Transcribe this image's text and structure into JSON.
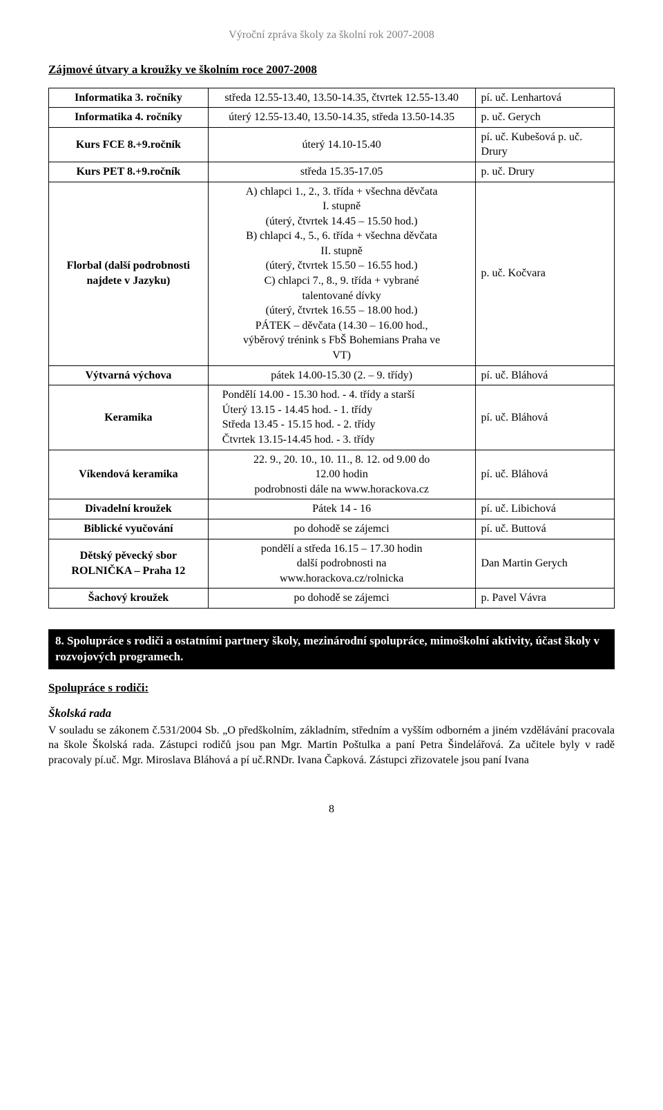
{
  "header": "Výroční zpráva školy za školní rok 2007-2008",
  "sectionTitle": "Zájmové útvary a kroužky ve školním roce 2007-2008",
  "rows": [
    {
      "name": "Informatika 3. ročníky",
      "time": "středa 12.55-13.40, 13.50-14.35, čtvrtek 12.55-13.40",
      "teacher": "pí. uč. Lenhartová"
    },
    {
      "name": "Informatika 4. ročníky",
      "time": "úterý 12.55-13.40, 13.50-14.35, středa 13.50-14.35",
      "teacher": "p. uč. Gerych"
    },
    {
      "name": "Kurs FCE 8.+9.ročník",
      "time": "úterý 14.10-15.40",
      "teacher": "pí. uč. Kubešová p. uč. Drury"
    },
    {
      "name": "Kurs PET 8.+9.ročník",
      "time": "středa 15.35-17.05",
      "teacher": "p. uč. Drury"
    },
    {
      "name": "Florbal (další podrobnosti najdete v Jazyku)",
      "timeLines": [
        "A) chlapci 1., 2., 3. třída + všechna děvčata",
        "I. stupně",
        "(úterý, čtvrtek 14.45 – 15.50 hod.)",
        "B) chlapci 4., 5., 6. třída + všechna děvčata",
        "II. stupně",
        "(úterý, čtvrtek 15.50 – 16.55 hod.)",
        "C) chlapci 7., 8., 9. třída + vybrané",
        "talentované dívky",
        "(úterý, čtvrtek 16.55 – 18.00 hod.)",
        "PÁTEK – děvčata (14.30 – 16.00 hod.,",
        "výběrový trénink s FbŠ Bohemians Praha ve",
        "VT)"
      ],
      "teacher": "p. uč. Kočvara"
    },
    {
      "name": "Výtvarná výchova",
      "time": "pátek 14.00-15.30 (2. – 9. třídy)",
      "teacher": "pí. uč. Bláhová"
    },
    {
      "name": "Keramika",
      "timeLines": [
        "Pondělí 14.00 - 15.30 hod. - 4. třídy a starší",
        "Úterý 13.15 - 14.45 hod. - 1. třídy",
        "Středa 13.45 - 15.15 hod. - 2. třídy",
        "Čtvrtek 13.15-14.45 hod. - 3. třídy"
      ],
      "teacher": "pí. uč. Bláhová"
    },
    {
      "name": "Víkendová keramika",
      "timeLines": [
        "22. 9., 20. 10., 10. 11., 8. 12. od 9.00 do",
        "12.00 hodin",
        "podrobnosti dále na www.horackova.cz"
      ],
      "teacher": "pí. uč. Bláhová"
    },
    {
      "name": "Divadelní kroužek",
      "time": "Pátek 14 - 16",
      "teacher": "pí. uč. Libichová"
    },
    {
      "name": "Biblické vyučování",
      "time": "po dohodě se zájemci",
      "teacher": "pí. uč. Buttová"
    },
    {
      "name": "Dětský pěvecký sbor ROLNIČKA – Praha 12",
      "timeLines": [
        "pondělí a středa 16.15 – 17.30 hodin",
        "další podrobnosti na",
        "www.horackova.cz/rolnicka"
      ],
      "teacher": "Dan Martin Gerych"
    },
    {
      "name": "Šachový kroužek",
      "time": "po dohodě se zájemci",
      "teacher": "p. Pavel Vávra"
    }
  ],
  "blackBand": "8. Spolupráce s rodiči a ostatními partnery školy, mezinárodní spolupráce, mimoškolní aktivity, účast školy v rozvojových programech.",
  "subSection": "Spolupráce s rodiči:",
  "bodyHeading": "Školská rada",
  "bodyPara": "V souladu se zákonem č.531/2004 Sb. „O předškolním, základním, středním a vyšším odborném a jiném vzdělávání pracovala na škole Školská rada. Zástupci rodičů jsou pan Mgr. Martin Poštulka a paní Petra Šindelářová. Za učitele byly v radě pracovaly pí.uč. Mgr. Miroslava Bláhová a pí uč.RNDr. Ivana Čapková. Zástupci zřizovatele jsou paní Ivana",
  "pageNum": "8"
}
